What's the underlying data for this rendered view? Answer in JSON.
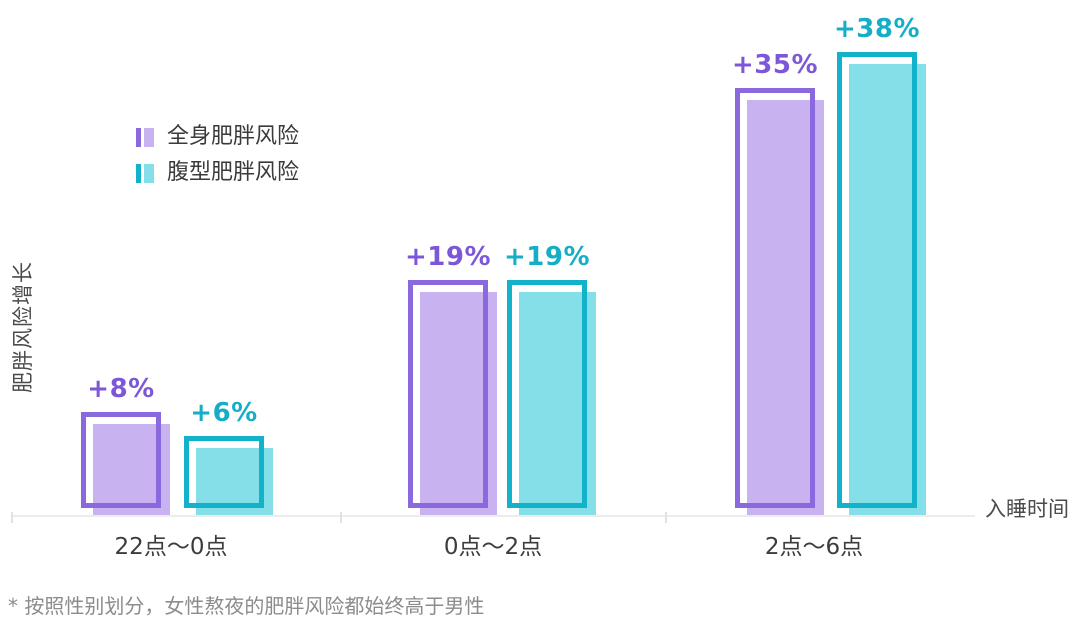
{
  "chart_data": {
    "type": "bar",
    "categories": [
      "22点～0点",
      "0点～2点",
      "2点～6点"
    ],
    "series": [
      {
        "name": "全身肥胖风险",
        "values": [
          8,
          19,
          35
        ],
        "value_labels": [
          "+8%",
          "+19%",
          "+35%"
        ],
        "border_color": "#8A68DE",
        "fill_color": "#C8B3F0",
        "label_color": "#7C57D8"
      },
      {
        "name": "腹型肥胖风险",
        "values": [
          6,
          19,
          38
        ],
        "value_labels": [
          "+6%",
          "+19%",
          "+38%"
        ],
        "border_color": "#13B2CB",
        "fill_color": "#85DFE9",
        "label_color": "#16AEC6"
      }
    ],
    "xlabel": "入睡时间",
    "ylabel": "肥胖风险增长",
    "unit": "%",
    "ylim": [
      0,
      40
    ],
    "grid": false,
    "legend_position": "upper-left"
  },
  "colors": {
    "axis_line": "#ECECEC",
    "category_text": "#3C3C3C",
    "axis_label_text": "#4B4B4B",
    "footnote_text": "#8C8C8C"
  },
  "footnote": "* 按照性别划分，女性熬夜的肥胖风险都始终高于男性"
}
